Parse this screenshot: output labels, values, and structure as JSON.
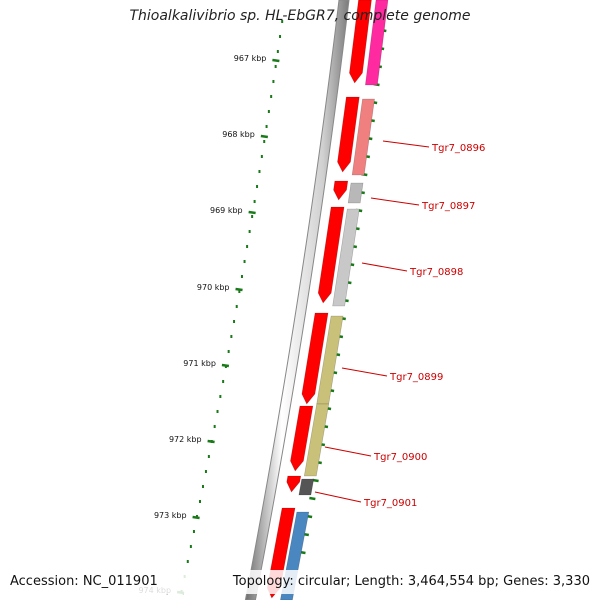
{
  "title": "Thioalkalivibrio sp. HL-EbGR7, complete genome",
  "accession": "Accession: NC_011901",
  "topology": "Topology: circular; Length: 3,464,554 bp; Genes: 3,330",
  "ruler": [
    {
      "label": "967 kbp",
      "pos": 967
    },
    {
      "label": "968 kbp",
      "pos": 968
    },
    {
      "label": "969 kbp",
      "pos": 969
    },
    {
      "label": "970 kbp",
      "pos": 970
    },
    {
      "label": "971 kbp",
      "pos": 971
    },
    {
      "label": "972 kbp",
      "pos": 972
    },
    {
      "label": "973 kbp",
      "pos": 973
    },
    {
      "label": "974 kbp",
      "pos": 974
    }
  ],
  "genes": [
    {
      "name": "Tgr7_0896",
      "color": "#f08080"
    },
    {
      "name": "Tgr7_0897",
      "color": "#b8b8b8"
    },
    {
      "name": "Tgr7_0898",
      "color": "#c8c8c8"
    },
    {
      "name": "Tgr7_0899",
      "color": "#c9c17a"
    },
    {
      "name": "Tgr7_0900",
      "color": "#c9c17a"
    },
    {
      "name": "Tgr7_0901",
      "color": "#555555"
    }
  ],
  "colors": {
    "cds": "#ff0000",
    "magenta": "#ff2aa0",
    "blue": "#4a86c0",
    "ruler": "#1a7a1a",
    "label": "#cc0000",
    "backbone": "#888888"
  }
}
